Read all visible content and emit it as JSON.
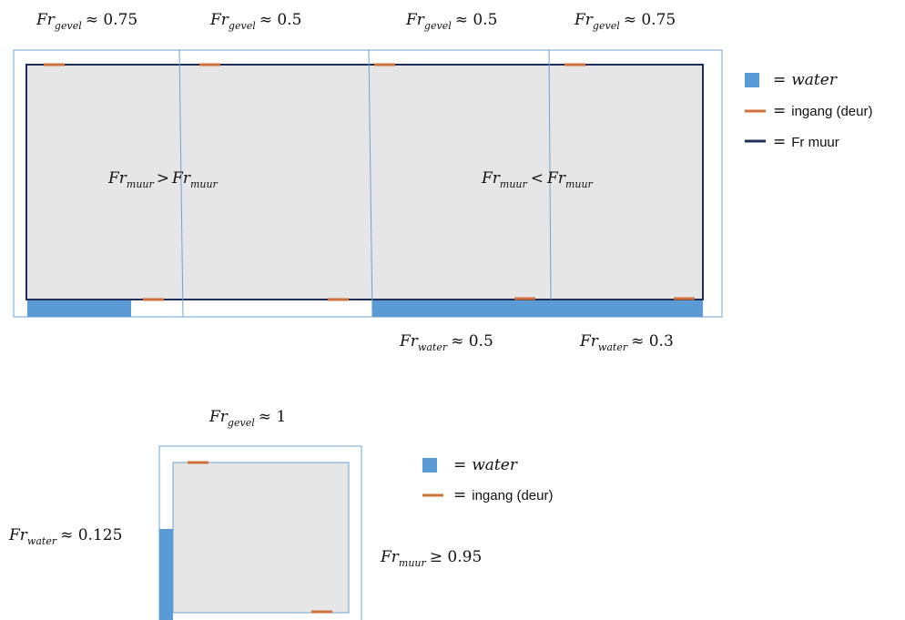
{
  "colors": {
    "water": "#5b9bd5",
    "door": "#d0703a",
    "wall": "#1f2d5a",
    "outline": "#6fa3d0",
    "fill": "#e5e6e5"
  },
  "diagram_top": {
    "facade_labels": [
      {
        "base": "Fr",
        "sub": "gevel",
        "rel": "≈ 0.75"
      },
      {
        "base": "Fr",
        "sub": "gevel",
        "rel": "≈ 0.5"
      },
      {
        "base": "Fr",
        "sub": "gevel",
        "rel": "≈ 0.5"
      },
      {
        "base": "Fr",
        "sub": "gevel",
        "rel": "≈ 0.75"
      }
    ],
    "comparisons": [
      {
        "lhs_base": "Fr",
        "lhs_sub": "muur",
        "op": ">",
        "rhs_base": "Fr",
        "rhs_sub": "muur"
      },
      {
        "lhs_base": "Fr",
        "lhs_sub": "muur",
        "op": "<",
        "rhs_base": "Fr",
        "rhs_sub": "muur"
      }
    ],
    "water_labels": [
      {
        "base": "Fr",
        "sub": "water",
        "rel": "≈ 0.5"
      },
      {
        "base": "Fr",
        "sub": "water",
        "rel": "≈ 0.3"
      }
    ],
    "legend": [
      {
        "symbol": "water-square",
        "eq": "=",
        "label": "water",
        "italic": true
      },
      {
        "symbol": "door-line",
        "eq": "=",
        "label": "ingang (deur)",
        "italic": false
      },
      {
        "symbol": "wall-line",
        "eq": "=",
        "label": "Fr muur",
        "italic": false
      }
    ]
  },
  "diagram_bottom": {
    "facade_label": {
      "base": "Fr",
      "sub": "gevel",
      "rel": "≈ 1"
    },
    "water_label": {
      "base": "Fr",
      "sub": "water",
      "rel": "≈ 0.125"
    },
    "wall_label": {
      "base": "Fr",
      "sub": "muur",
      "rel": "≥ 0.95"
    },
    "legend": [
      {
        "symbol": "water-square",
        "eq": "=",
        "label": "water",
        "italic": true
      },
      {
        "symbol": "door-line",
        "eq": "=",
        "label": "ingang (deur)",
        "italic": false
      }
    ]
  }
}
